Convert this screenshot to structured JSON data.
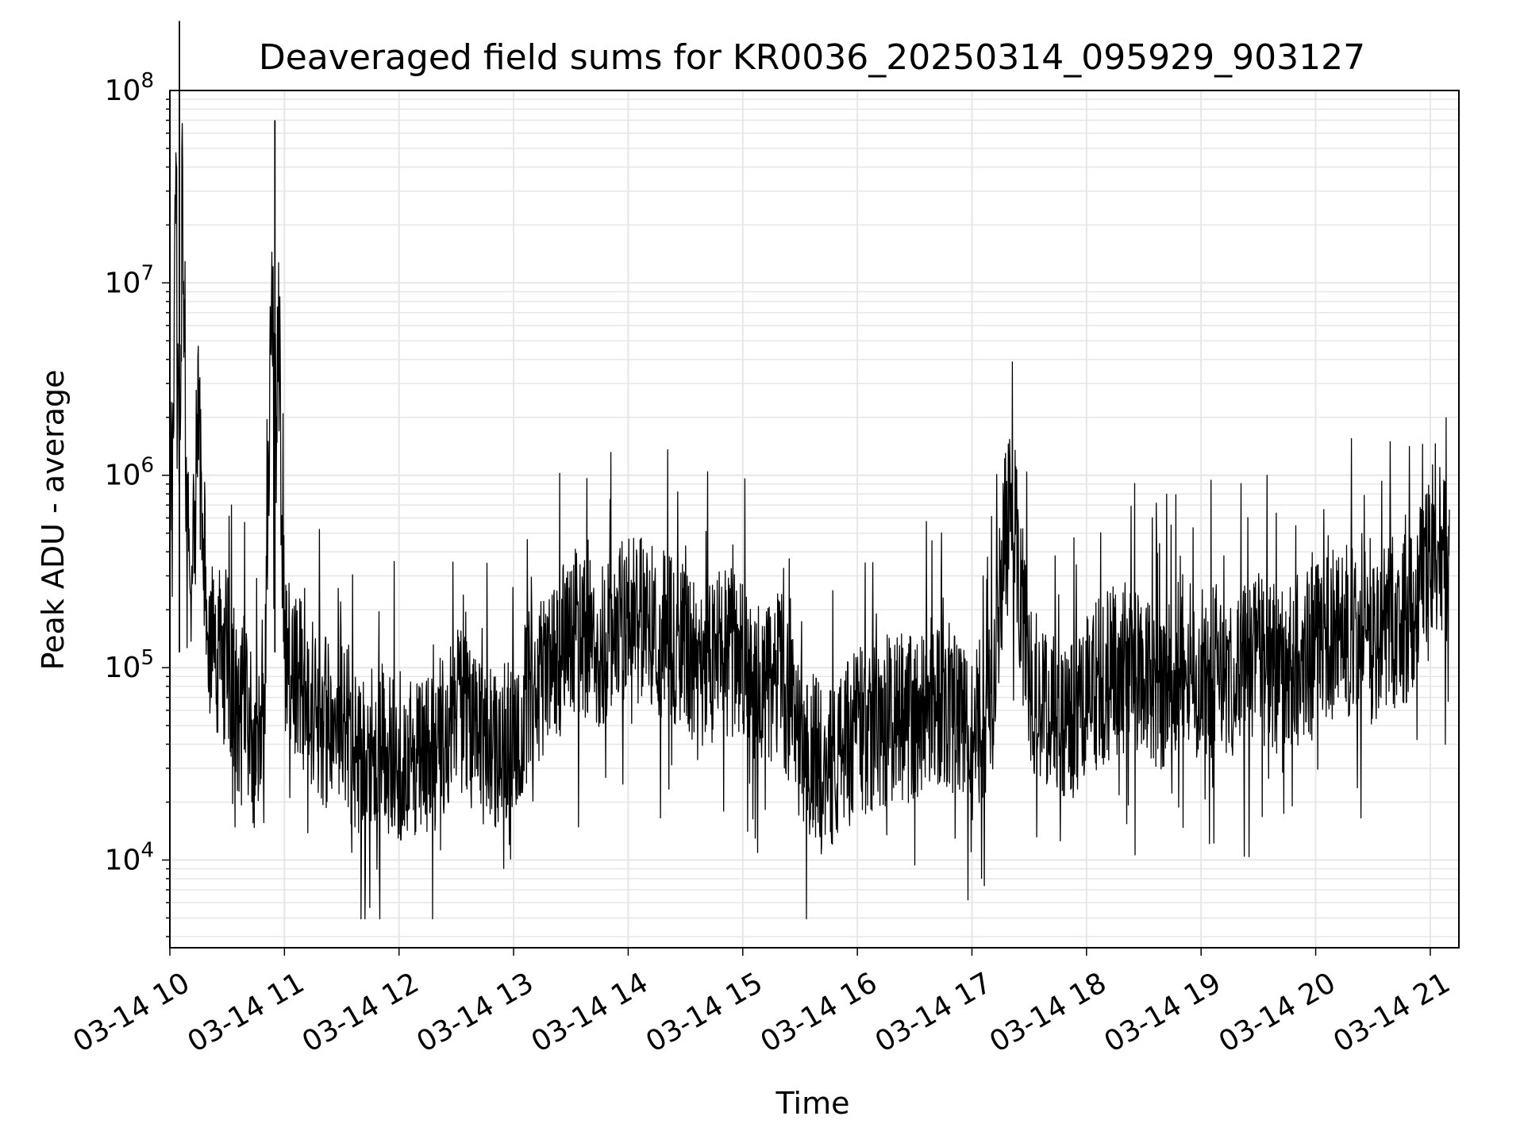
{
  "chart_data": {
    "type": "line",
    "title": "Deaveraged field sums for KR0036_20250314_095929_903127",
    "xlabel": "Time",
    "ylabel": "Peak ADU - average",
    "yscale": "log",
    "ylim": [
      3500,
      100000000
    ],
    "xlim": [
      "2025-03-14 10:00",
      "2025-03-14 21:15"
    ],
    "grid": true,
    "line_color": "#000000",
    "grid_color": "#e6e6e6",
    "x_ticks": [
      {
        "value": "2025-03-14 10:00",
        "label": "03-14 10"
      },
      {
        "value": "2025-03-14 11:00",
        "label": "03-14 11"
      },
      {
        "value": "2025-03-14 12:00",
        "label": "03-14 12"
      },
      {
        "value": "2025-03-14 13:00",
        "label": "03-14 13"
      },
      {
        "value": "2025-03-14 14:00",
        "label": "03-14 14"
      },
      {
        "value": "2025-03-14 15:00",
        "label": "03-14 15"
      },
      {
        "value": "2025-03-14 16:00",
        "label": "03-14 16"
      },
      {
        "value": "2025-03-14 17:00",
        "label": "03-14 17"
      },
      {
        "value": "2025-03-14 18:00",
        "label": "03-14 18"
      },
      {
        "value": "2025-03-14 19:00",
        "label": "03-14 19"
      },
      {
        "value": "2025-03-14 20:00",
        "label": "03-14 20"
      },
      {
        "value": "2025-03-14 21:00",
        "label": "03-14 21"
      }
    ],
    "y_ticks": [
      {
        "value": 10000,
        "base": "10",
        "exp": "4"
      },
      {
        "value": 100000,
        "base": "10",
        "exp": "5"
      },
      {
        "value": 1000000,
        "base": "10",
        "exp": "6"
      },
      {
        "value": 10000000,
        "base": "10",
        "exp": "7"
      },
      {
        "value": 100000000,
        "base": "10",
        "exp": "8"
      }
    ],
    "series": [
      {
        "x": [
          "2025-03-14 10:00",
          "2025-03-14 10:05",
          "2025-03-14 10:10",
          "2025-03-14 10:15",
          "2025-03-14 10:20",
          "2025-03-14 10:25",
          "2025-03-14 10:30",
          "2025-03-14 10:35",
          "2025-03-14 10:40",
          "2025-03-14 10:45",
          "2025-03-14 10:50",
          "2025-03-14 10:55",
          "2025-03-14 11:00",
          "2025-03-14 11:10",
          "2025-03-14 11:20",
          "2025-03-14 11:30",
          "2025-03-14 11:40",
          "2025-03-14 11:50",
          "2025-03-14 12:00",
          "2025-03-14 12:10",
          "2025-03-14 12:20",
          "2025-03-14 12:30",
          "2025-03-14 12:40",
          "2025-03-14 12:50",
          "2025-03-14 13:00",
          "2025-03-14 13:10",
          "2025-03-14 13:20",
          "2025-03-14 13:30",
          "2025-03-14 13:40",
          "2025-03-14 13:50",
          "2025-03-14 14:00",
          "2025-03-14 14:10",
          "2025-03-14 14:20",
          "2025-03-14 14:30",
          "2025-03-14 14:40",
          "2025-03-14 14:50",
          "2025-03-14 15:00",
          "2025-03-14 15:10",
          "2025-03-14 15:20",
          "2025-03-14 15:30",
          "2025-03-14 15:40",
          "2025-03-14 15:50",
          "2025-03-14 16:00",
          "2025-03-14 16:10",
          "2025-03-14 16:20",
          "2025-03-14 16:30",
          "2025-03-14 16:40",
          "2025-03-14 16:50",
          "2025-03-14 17:00",
          "2025-03-14 17:10",
          "2025-03-14 17:20",
          "2025-03-14 17:30",
          "2025-03-14 17:40",
          "2025-03-14 17:50",
          "2025-03-14 18:00",
          "2025-03-14 18:10",
          "2025-03-14 18:20",
          "2025-03-14 18:30",
          "2025-03-14 18:40",
          "2025-03-14 18:50",
          "2025-03-14 19:00",
          "2025-03-14 19:10",
          "2025-03-14 19:20",
          "2025-03-14 19:30",
          "2025-03-14 19:40",
          "2025-03-14 19:50",
          "2025-03-14 20:00",
          "2025-03-14 20:10",
          "2025-03-14 20:20",
          "2025-03-14 20:30",
          "2025-03-14 20:40",
          "2025-03-14 20:50",
          "2025-03-14 21:00",
          "2025-03-14 21:05",
          "2025-03-14 21:10"
        ],
        "y": [
          300000,
          230000000,
          250000,
          1800000,
          150000,
          90000,
          120000,
          60000,
          70000,
          30000,
          90000,
          70000000,
          120000,
          80000,
          50000,
          60000,
          30000,
          40000,
          35000,
          30000,
          40000,
          60000,
          50000,
          35000,
          50000,
          80000,
          100000,
          160000,
          130000,
          150000,
          200000,
          170000,
          150000,
          120000,
          100000,
          130000,
          100000,
          70000,
          90000,
          40000,
          30000,
          30000,
          50000,
          45000,
          60000,
          50000,
          70000,
          60000,
          45000,
          60000,
          1000000,
          80000,
          60000,
          50000,
          70000,
          90000,
          100000,
          90000,
          80000,
          110000,
          90000,
          100000,
          90000,
          110000,
          100000,
          110000,
          120000,
          150000,
          160000,
          140000,
          170000,
          180000,
          400000,
          450000,
          350000
        ]
      }
    ]
  }
}
